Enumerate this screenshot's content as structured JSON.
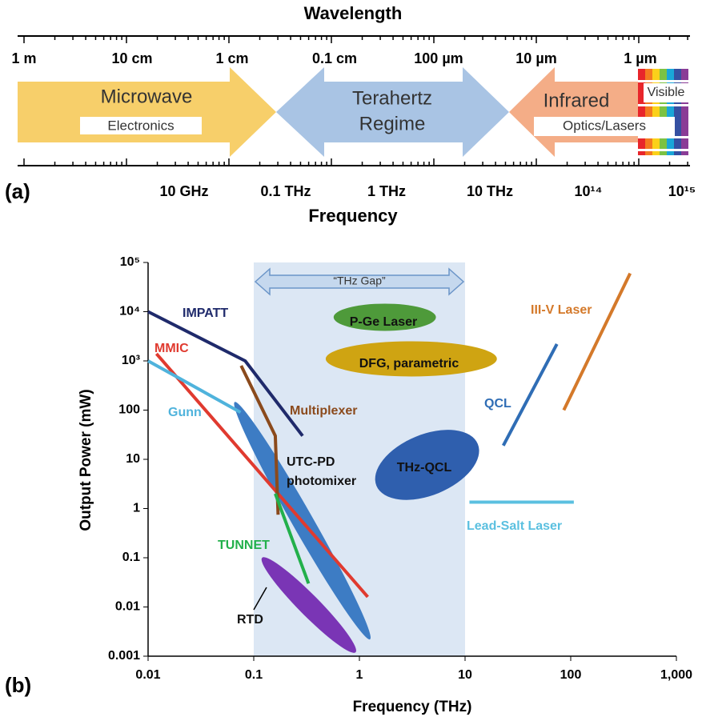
{
  "panel_a": {
    "label": "(a)",
    "wavelength_title": "Wavelength",
    "frequency_title": "Frequency",
    "wavelength_labels": [
      "1 m",
      "10 cm",
      "1 cm",
      "0.1 cm",
      "100 µm",
      "10 µm",
      "1 µm"
    ],
    "frequency_labels": [
      "10 GHz",
      "0.1 THz",
      "1 THz",
      "10 THz",
      "10¹⁴",
      "10¹⁵"
    ],
    "bands": [
      {
        "label": [
          "Microwave"
        ],
        "sublabel": "Electronics"
      },
      {
        "label": [
          "Terahertz",
          "Regime"
        ]
      },
      {
        "label": [
          "Infrared"
        ],
        "sublabel": "Optics/Lasers"
      },
      {
        "label": [
          "Visible"
        ]
      }
    ]
  },
  "chart_data": {
    "type": "line",
    "panel_label": "(b)",
    "x_label": "Frequency (THz)",
    "y_label": "Output Power (mW)",
    "log_x": true,
    "log_y": true,
    "xlim": [
      0.01,
      1000
    ],
    "ylim": [
      0.001,
      100000
    ],
    "xticks": [
      0.01,
      0.1,
      1,
      10,
      100,
      {
        "value": 1000,
        "label": "1,000"
      }
    ],
    "yticks": [
      0.001,
      0.01,
      0.1,
      1,
      10,
      100,
      {
        "value": 1000,
        "label": "10³"
      },
      {
        "value": 10000,
        "label": "10⁴"
      },
      {
        "value": 100000,
        "label": "10⁵"
      }
    ],
    "gap": {
      "label": "“THz Gap”",
      "x": [
        0.1,
        10
      ]
    },
    "series": [
      {
        "name": "IMPATT",
        "color": "#1f2a6b",
        "x": [
          0.01,
          0.083,
          0.29
        ],
        "values": [
          10000,
          1000,
          30
        ]
      },
      {
        "name": "MMIC",
        "color": "#e03a2f",
        "x": [
          0.012,
          1.2
        ],
        "values": [
          1400,
          0.016
        ]
      },
      {
        "name": "Gunn",
        "color": "#4fb3dc",
        "x": [
          0.01,
          0.075
        ],
        "values": [
          1000,
          90
        ]
      },
      {
        "name": "Multiplexer",
        "color": "#8b4a1c",
        "x": [
          0.076,
          0.16,
          0.17
        ],
        "values": [
          800,
          30,
          0.75
        ]
      },
      {
        "name": "TUNNET",
        "color": "#22b04b",
        "x": [
          0.16,
          0.33
        ],
        "values": [
          2,
          0.03
        ]
      },
      {
        "name": "QCL",
        "color": "#2f6db5",
        "x": [
          23,
          74
        ],
        "values": [
          19,
          2200
        ]
      },
      {
        "name": "III-V Laser",
        "color": "#d4792a",
        "x": [
          86,
          365
        ],
        "values": [
          100,
          60000
        ]
      },
      {
        "name": "Lead-Salt Laser",
        "color": "#5bc0e0",
        "x": [
          11,
          107
        ],
        "values": [
          1.35,
          1.35
        ]
      }
    ],
    "regions": [
      {
        "label": [
          "P-Ge Laser"
        ],
        "color": "#4e9a3a",
        "x": [
          0.57,
          5.3
        ],
        "values": [
          7700,
          7700
        ]
      },
      {
        "label": [
          "DFG, parametric"
        ],
        "color": "#cfa412",
        "x": [
          0.48,
          20
        ],
        "values": [
          1100,
          1100
        ]
      },
      {
        "label": [
          "THz-QCL"
        ],
        "color": "#2f5fae",
        "x": [
          1.45,
          13.2
        ],
        "values": [
          2.9,
          20.5
        ]
      },
      {
        "label": [
          "UTC-PD",
          "photomixer"
        ],
        "color": "#3d7cc4",
        "x": [
          0.066,
          1.26
        ],
        "values": [
          146,
          0.0022
        ]
      },
      {
        "label": [
          "RTD"
        ],
        "color": "#7a35b5",
        "x": [
          0.12,
          0.92
        ],
        "values": [
          0.1,
          0.0012
        ]
      }
    ]
  }
}
